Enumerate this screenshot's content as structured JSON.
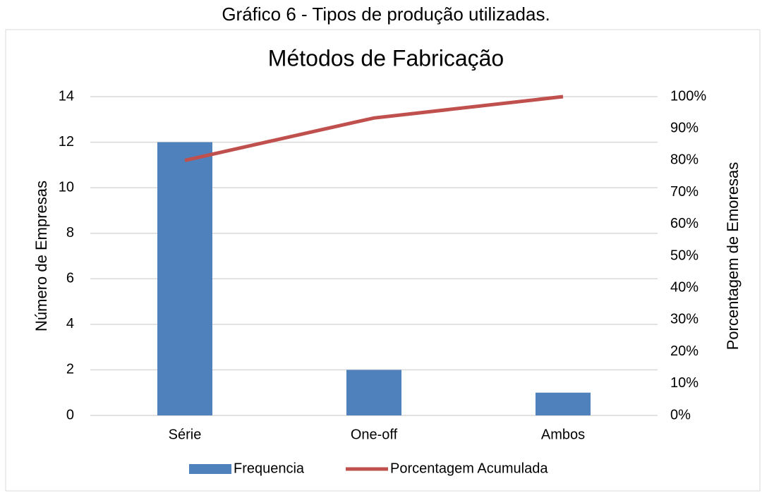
{
  "caption": "Gráfico 6 - Tipos de produção utilizadas.",
  "chart_data": {
    "type": "bar",
    "title": "Métodos de Fabricação",
    "categories": [
      "Série",
      "One-off",
      "Ambos"
    ],
    "series": [
      {
        "name": "Frequencia",
        "type": "bar",
        "color": "#4f81bd",
        "values": [
          12,
          2,
          1
        ]
      },
      {
        "name": "Porcentagem Acumulada",
        "type": "line",
        "axis": "y2",
        "color": "#c0504d",
        "values": [
          80,
          93.3,
          100
        ]
      }
    ],
    "ylabel": "Número de Empresas",
    "y2label": "Porcentagem de Emoresas",
    "ylim": [
      0,
      14
    ],
    "yticks": [
      0,
      2,
      4,
      6,
      8,
      10,
      12,
      14
    ],
    "y2lim": [
      0,
      100
    ],
    "y2ticks": [
      {
        "value": 0,
        "label": "0%"
      },
      {
        "value": 10,
        "label": "10%"
      },
      {
        "value": 20,
        "label": "20%"
      },
      {
        "value": 30,
        "label": "30%"
      },
      {
        "value": 40,
        "label": "40%"
      },
      {
        "value": 50,
        "label": "50%"
      },
      {
        "value": 60,
        "label": "60%"
      },
      {
        "value": 70,
        "label": "70%"
      },
      {
        "value": 80,
        "label": "80%"
      },
      {
        "value": 90,
        "label": "90%"
      },
      {
        "value": 100,
        "label": "100%"
      }
    ],
    "grid": true,
    "legend": "bottom"
  }
}
